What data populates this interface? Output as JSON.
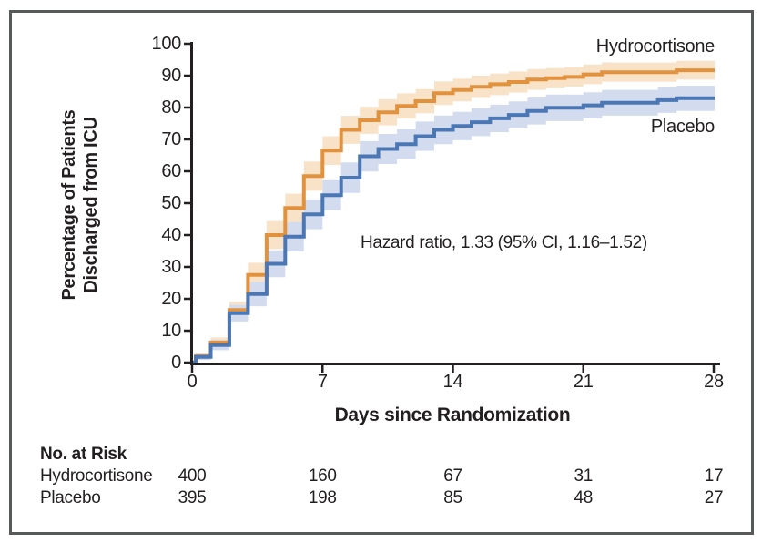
{
  "chart_data": {
    "type": "line",
    "subtype": "kaplan-meier-step-with-ci-bands",
    "title": "",
    "xlabel": "Days since Randomization",
    "ylabel": "Percentage of Patients Discharged from ICU",
    "ylabel_line1": "Percentage of Patients",
    "ylabel_line2": "Discharged from ICU",
    "xlim": [
      0,
      28
    ],
    "ylim": [
      0,
      100
    ],
    "xticks": [
      0,
      7,
      14,
      21,
      28
    ],
    "yticks": [
      0,
      10,
      20,
      30,
      40,
      50,
      60,
      70,
      80,
      90,
      100
    ],
    "grid": false,
    "legend_position": "right-of-curve-ends",
    "annotation": "Hazard ratio, 1.33 (95% CI, 1.16–1.52)",
    "series": [
      {
        "name": "Hydrocortisone",
        "color": "#E2923D",
        "band_color": "#F8E3C9",
        "points": [
          [
            0,
            0
          ],
          [
            0.2,
            2
          ],
          [
            1,
            6.3
          ],
          [
            2,
            16.5
          ],
          [
            3,
            27.5
          ],
          [
            4,
            40
          ],
          [
            5,
            48.5
          ],
          [
            6,
            58.5
          ],
          [
            7,
            66.5
          ],
          [
            8,
            73
          ],
          [
            9,
            76
          ],
          [
            10,
            78.5
          ],
          [
            11,
            80.5
          ],
          [
            12,
            82
          ],
          [
            13,
            84.5
          ],
          [
            14,
            85.5
          ],
          [
            15,
            86.5
          ],
          [
            16,
            87.3
          ],
          [
            17,
            88
          ],
          [
            18,
            88.8
          ],
          [
            19,
            89.2
          ],
          [
            20,
            89.6
          ],
          [
            21,
            90.4
          ],
          [
            22,
            91.1
          ],
          [
            26,
            91.7
          ],
          [
            28,
            91.7
          ]
        ],
        "band_halfwidth": [
          [
            0,
            0.8
          ],
          [
            1,
            1.6
          ],
          [
            2,
            2.6
          ],
          [
            3,
            3.8
          ],
          [
            4,
            4.4
          ],
          [
            6,
            4.6
          ],
          [
            8,
            4.4
          ],
          [
            12,
            3.8
          ],
          [
            16,
            3.4
          ],
          [
            20,
            3.1
          ],
          [
            24,
            3.0
          ],
          [
            28,
            2.9
          ]
        ]
      },
      {
        "name": "Placebo",
        "color": "#4B77B5",
        "band_color": "#D3DCEF",
        "points": [
          [
            0,
            0
          ],
          [
            0.2,
            1.8
          ],
          [
            1,
            5.5
          ],
          [
            2,
            15.5
          ],
          [
            3,
            21.5
          ],
          [
            4,
            31
          ],
          [
            5,
            39.5
          ],
          [
            6,
            46.5
          ],
          [
            7,
            52.5
          ],
          [
            8,
            58
          ],
          [
            9,
            64.7
          ],
          [
            10,
            67
          ],
          [
            11,
            68.5
          ],
          [
            12,
            71
          ],
          [
            13,
            73
          ],
          [
            14,
            74.2
          ],
          [
            15,
            75.4
          ],
          [
            16,
            76.6
          ],
          [
            17,
            77.7
          ],
          [
            18,
            78.9
          ],
          [
            19,
            79.9
          ],
          [
            21,
            80.7
          ],
          [
            22,
            81.5
          ],
          [
            25,
            82.3
          ],
          [
            26,
            82.9
          ],
          [
            28,
            82.9
          ]
        ],
        "band_halfwidth": [
          [
            0,
            0.8
          ],
          [
            1,
            1.6
          ],
          [
            2,
            2.6
          ],
          [
            3,
            3.8
          ],
          [
            5,
            4.6
          ],
          [
            8,
            4.8
          ],
          [
            12,
            4.6
          ],
          [
            16,
            4.3
          ],
          [
            20,
            4.1
          ],
          [
            24,
            4.0
          ],
          [
            28,
            3.9
          ]
        ]
      }
    ],
    "no_at_risk": {
      "heading": "No. at Risk",
      "days": [
        0,
        7,
        14,
        21,
        28
      ],
      "rows": [
        {
          "label": "Hydrocortisone",
          "values": [
            400,
            160,
            67,
            31,
            17
          ]
        },
        {
          "label": "Placebo",
          "values": [
            395,
            198,
            85,
            48,
            27
          ]
        }
      ]
    },
    "colors": {
      "text": "#231F20",
      "axis": "#231F20",
      "frame_border": "#58595B",
      "background": "#FFFFFF"
    }
  }
}
